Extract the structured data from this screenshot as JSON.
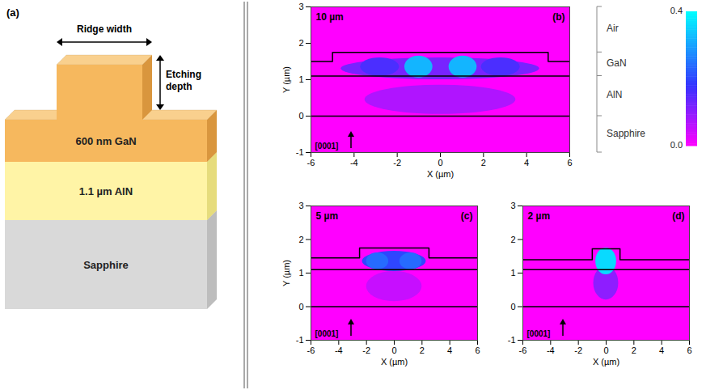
{
  "figure": {
    "panel_a": {
      "letter": "(a)",
      "ridge_width": "Ridge width",
      "etching_depth": "Etching depth",
      "gan": "600 nm GaN",
      "aln": "1.1 µm AlN",
      "substrate": "Sapphire"
    },
    "layers": [
      "Air",
      "GaN",
      "AlN",
      "Sapphire"
    ],
    "colorbar": {
      "range": [
        0,
        0.4
      ],
      "ticks": [
        {
          "value": 0,
          "label": "0.0"
        },
        {
          "value": 0.4,
          "label": "0.4"
        }
      ]
    }
  },
  "chart_data": [
    {
      "type": "heatmap",
      "letter": "(b)",
      "title": "10 µm",
      "direction": "[0001]",
      "x_label": "X (µm)",
      "y_label": "Y (µm)",
      "xlim": [
        -6,
        6
      ],
      "xticks": [
        -6,
        -4,
        -2,
        0,
        2,
        4,
        6
      ],
      "ylim": [
        -1,
        3
      ],
      "yticks": [
        -1,
        0,
        1,
        2,
        3
      ],
      "structure": {
        "ridge_width": 10,
        "gan_etched_top": 1.5,
        "gan_top": 1.75,
        "aln_top": 1.1,
        "aln_bottom": 0
      },
      "lobes": [
        {
          "x": 0,
          "y": 0.45,
          "half_width": 3.5,
          "half_height": 0.4,
          "intensity": 0.07
        },
        {
          "x": 0,
          "y": 1.3,
          "half_width": 4.6,
          "half_height": 0.3,
          "intensity": 0.12
        },
        {
          "x": -2.8,
          "y": 1.35,
          "half_width": 0.9,
          "half_height": 0.25,
          "intensity": 0.16
        },
        {
          "x": 2.8,
          "y": 1.35,
          "half_width": 0.9,
          "half_height": 0.25,
          "intensity": 0.16
        },
        {
          "x": -1.0,
          "y": 1.35,
          "half_width": 0.65,
          "half_height": 0.3,
          "intensity": 0.32
        },
        {
          "x": 1.05,
          "y": 1.35,
          "half_width": 0.65,
          "half_height": 0.3,
          "intensity": 0.32
        }
      ]
    },
    {
      "type": "heatmap",
      "letter": "(c)",
      "title": "5 µm",
      "direction": "[0001]",
      "x_label": "X (µm)",
      "y_label": "Y (µm)",
      "xlim": [
        -6,
        6
      ],
      "xticks": [
        -6,
        -4,
        -2,
        0,
        2,
        4,
        6
      ],
      "ylim": [
        -1,
        3
      ],
      "yticks": [
        -1,
        0,
        1,
        2,
        3
      ],
      "structure": {
        "ridge_width": 5,
        "gan_etched_top": 1.45,
        "gan_top": 1.75,
        "aln_top": 1.1,
        "aln_bottom": 0
      },
      "lobes": [
        {
          "x": 0,
          "y": 0.6,
          "half_width": 2.0,
          "half_height": 0.45,
          "intensity": 0.05
        },
        {
          "x": 0,
          "y": 1.35,
          "half_width": 2.3,
          "half_height": 0.3,
          "intensity": 0.2
        },
        {
          "x": -1.2,
          "y": 1.35,
          "half_width": 0.8,
          "half_height": 0.25,
          "intensity": 0.24
        },
        {
          "x": 1.2,
          "y": 1.35,
          "half_width": 0.8,
          "half_height": 0.25,
          "intensity": 0.24
        }
      ]
    },
    {
      "type": "heatmap",
      "letter": "(d)",
      "title": "2 µm",
      "direction": "[0001]",
      "x_label": "X (µm)",
      "xlim": [
        -6,
        6
      ],
      "xticks": [
        -6,
        -4,
        -2,
        0,
        2,
        4,
        6
      ],
      "ylim": [
        -1,
        3
      ],
      "yticks": [
        -1,
        0,
        1,
        2,
        3
      ],
      "structure": {
        "ridge_width": 2,
        "gan_etched_top": 1.4,
        "gan_top": 1.72,
        "aln_top": 1.1,
        "aln_bottom": 0
      },
      "lobes": [
        {
          "x": 0,
          "y": 0.7,
          "half_width": 0.9,
          "half_height": 0.5,
          "intensity": 0.1
        },
        {
          "x": 0,
          "y": 1.35,
          "half_width": 0.75,
          "half_height": 0.4,
          "intensity": 0.36
        }
      ]
    }
  ]
}
